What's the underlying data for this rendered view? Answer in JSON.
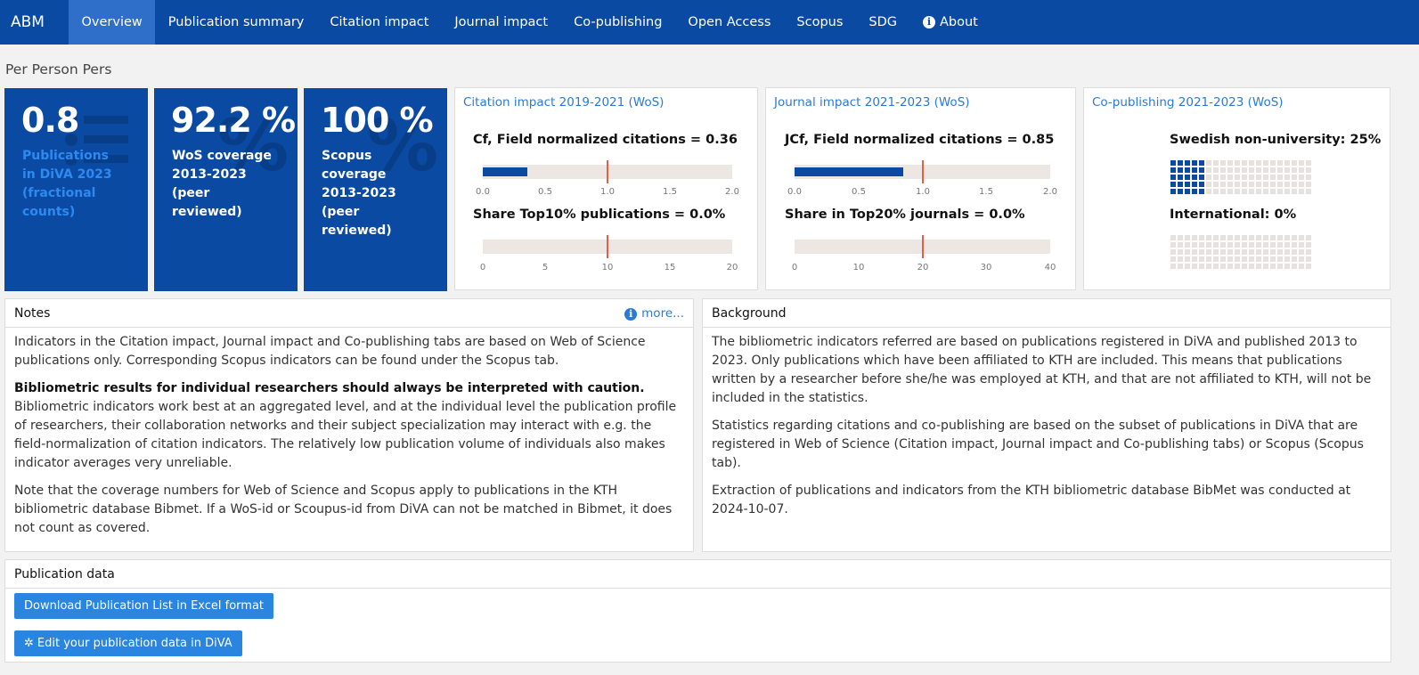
{
  "nav": {
    "brand": "ABM",
    "items": [
      "Overview",
      "Publication summary",
      "Citation impact",
      "Journal impact",
      "Co-publishing",
      "Open Access",
      "Scopus",
      "SDG",
      "About"
    ],
    "active_index": 0
  },
  "page_title": "Per Person Pers",
  "tiles": [
    {
      "value": "0.8",
      "label": "Publications in DiVA 2023 (fractional counts)",
      "watermark": "icon"
    },
    {
      "value": "92.2 %",
      "label": "WoS coverage 2013-2023 (peer reviewed)",
      "watermark": "%"
    },
    {
      "value": "100 %",
      "label": "Scopus coverage 2013-2023 (peer reviewed)",
      "watermark": "%"
    }
  ],
  "citation": {
    "title": "Citation impact 2019-2021 (WoS)",
    "metric1": "Cf, Field normalized citations = 0.36",
    "metric1_value": 0.36,
    "ticks1": [
      "0.0",
      "0.5",
      "1.0",
      "1.5",
      "2.0"
    ],
    "metric2": "Share Top10% publications = 0.0%",
    "metric2_value": 0.0,
    "ticks2": [
      "0",
      "5",
      "10",
      "15",
      "20"
    ]
  },
  "journal": {
    "title": "Journal impact 2021-2023 (WoS)",
    "metric1": "JCf, Field normalized citations = 0.85",
    "metric1_value": 0.85,
    "ticks1": [
      "0.0",
      "0.5",
      "1.0",
      "1.5",
      "2.0"
    ],
    "metric2": "Share in Top20% journals = 0.0%",
    "metric2_value": 0.0,
    "ticks2": [
      "0",
      "10",
      "20",
      "30",
      "40"
    ]
  },
  "copub": {
    "title": "Co-publishing 2021-2023 (WoS)",
    "label1": "Swedish non-university: 25%",
    "share1": 25,
    "label2": "International: 0%",
    "share2": 0
  },
  "notes": {
    "title": "Notes",
    "more": "more...",
    "p1": "Indicators in the Citation impact, Journal impact and Co-publishing tabs are based on Web of Science publications only. Corresponding Scopus indicators can be found under the Scopus tab.",
    "p2_strong": "Bibliometric results for individual researchers should always be interpreted with caution.",
    "p2": "Bibliometric indicators work best at an aggregated level, and at the individual level the publication profile of researchers, their collaboration networks and their subject specialization may interact with e.g. the field-normalization of citation indicators. The relatively low publication volume of individuals also makes indicator averages very unreliable.",
    "p3": "Note that the coverage numbers for Web of Science and Scopus apply to publications in the KTH bibliometric database Bibmet. If a WoS-id or Scoupus-id from DiVA can not be matched in Bibmet, it does not count as covered."
  },
  "background": {
    "title": "Background",
    "p1": "The bibliometric indicators referred are based on publications registered in DiVA and published 2013 to 2023. Only publications which have been affiliated to KTH are included. This means that publications written by a researcher before she/he was employed at KTH, and that are not affiliated to KTH, will not be included in the statistics.",
    "p2": "Statistics regarding citations and co-publishing are based on the subset of publications in DiVA that are registered in Web of Science (Citation impact, Journal impact and Co-publishing tabs) or Scopus (Scopus tab).",
    "p3": "Extraction of publications and indicators from the KTH bibliometric database BibMet was conducted at 2024-10-07."
  },
  "pubdata": {
    "title": "Publication data",
    "download": "Download Publication List in Excel format",
    "edit": "Edit your publication data in DiVA"
  },
  "colors": {
    "nav": "#0a4aa3",
    "accent": "#2a7ad8",
    "marker": "#e0604a",
    "track": "#ece7e2"
  }
}
